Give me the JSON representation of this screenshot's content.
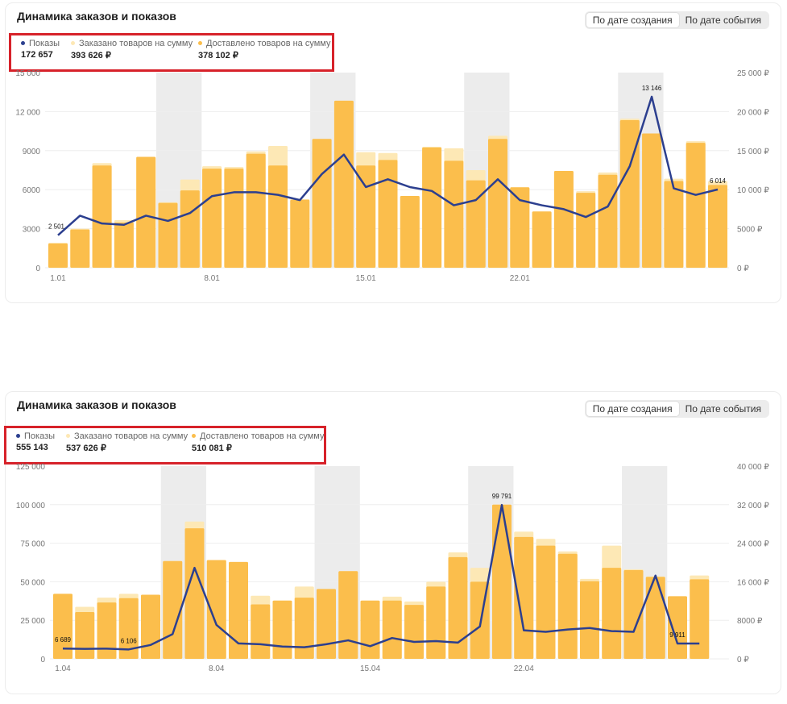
{
  "colors": {
    "bar_ordered": "#fde8b5",
    "bar_delivered": "#fbbe4c",
    "line": "#2c3f8f",
    "weekend": "#ececec",
    "grid": "#eeeeee",
    "highlight_border": "#d7222a"
  },
  "charts": [
    {
      "title": "Динамика заказов и показов",
      "toggle": {
        "option1": "По дате создания",
        "option2": "По дате события"
      },
      "legend": {
        "shows_label": "Показы",
        "shows_value": "172 657",
        "ordered_label": "Заказано товаров на сумму",
        "ordered_value": "393 626 ₽",
        "delivered_label": "Доставлено товаров на сумму",
        "delivered_value": "378 102 ₽"
      },
      "point_labels": [
        "2 501",
        "13 146",
        "6 014"
      ]
    },
    {
      "title": "Динамика заказов и показов",
      "toggle": {
        "option1": "По дате создания",
        "option2": "По дате события"
      },
      "legend": {
        "shows_label": "Показы",
        "shows_value": "555 143",
        "ordered_label": "Заказано товаров на сумму",
        "ordered_value": "537 626 ₽",
        "delivered_label": "Доставлено товаров на сумму",
        "delivered_value": "510 081 ₽"
      },
      "point_labels": [
        "6 689",
        "6 106",
        "99 791",
        "9 911"
      ]
    }
  ],
  "chart_data": [
    {
      "type": "bar",
      "title": "Динамика заказов и показов",
      "categories": [
        "1.01",
        "2.01",
        "3.01",
        "4.01",
        "5.01",
        "6.01",
        "7.01",
        "8.01",
        "9.01",
        "10.01",
        "11.01",
        "12.01",
        "13.01",
        "14.01",
        "15.01",
        "16.01",
        "17.01",
        "18.01",
        "19.01",
        "20.01",
        "21.01",
        "22.01",
        "23.01",
        "24.01",
        "25.01",
        "26.01",
        "27.01",
        "28.01",
        "29.01",
        "30.01",
        "31.01"
      ],
      "x_tick_labels": [
        "1.01",
        "8.01",
        "15.01",
        "22.01"
      ],
      "x_tick_indices": [
        0,
        7,
        14,
        21
      ],
      "weekend_indices": [
        5,
        6,
        12,
        13,
        19,
        20,
        26,
        27
      ],
      "left_axis": {
        "ylim": [
          0,
          15000
        ],
        "ticks": [
          0,
          3000,
          6000,
          9000,
          12000
        ],
        "tick_labels": [
          "0",
          "3000",
          "6000",
          "9000",
          "12 000"
        ],
        "top_label": "15 000"
      },
      "right_axis": {
        "ylim": [
          0,
          25000
        ],
        "ticks": [
          0,
          5000,
          10000,
          15000,
          20000,
          25000
        ],
        "tick_labels": [
          "0 ₽",
          "5000 ₽",
          "10 000 ₽",
          "15 000 ₽",
          "20 000 ₽",
          "25 000 ₽"
        ]
      },
      "series": [
        {
          "name": "Заказано товаров на сумму",
          "axis": "right",
          "type": "bar",
          "values": [
            3200,
            5000,
            13400,
            6100,
            14200,
            8400,
            11300,
            13000,
            12900,
            14900,
            15600,
            8800,
            16500,
            21400,
            14800,
            14700,
            9200,
            15500,
            15300,
            12500,
            16900,
            10300,
            7200,
            12400,
            9800,
            12200,
            19100,
            17200,
            11400,
            16200,
            11100
          ]
        },
        {
          "name": "Доставлено товаров на сумму",
          "axis": "right",
          "type": "bar",
          "values": [
            3100,
            4900,
            13100,
            5800,
            14200,
            8300,
            9900,
            12700,
            12700,
            14600,
            13100,
            8700,
            16500,
            21400,
            13100,
            13800,
            9200,
            15400,
            13700,
            11200,
            16500,
            10300,
            7200,
            12400,
            9600,
            11900,
            18900,
            17200,
            11100,
            16000,
            10600
          ]
        },
        {
          "name": "Показы",
          "axis": "left",
          "type": "line",
          "values": [
            2501,
            4000,
            3400,
            3300,
            4000,
            3600,
            4200,
            5500,
            5800,
            5800,
            5600,
            5200,
            7200,
            8700,
            6200,
            6800,
            6200,
            5900,
            4800,
            5200,
            6800,
            5200,
            4800,
            4500,
            3900,
            4700,
            7800,
            13146,
            6100,
            5600,
            6014
          ]
        }
      ]
    },
    {
      "type": "bar",
      "title": "Динамика заказов и показов",
      "categories": [
        "1.04",
        "2.04",
        "3.04",
        "4.04",
        "5.04",
        "6.04",
        "7.04",
        "8.04",
        "9.04",
        "10.04",
        "11.04",
        "12.04",
        "13.04",
        "14.04",
        "15.04",
        "16.04",
        "17.04",
        "18.04",
        "19.04",
        "20.04",
        "21.04",
        "22.04",
        "23.04",
        "24.04",
        "25.04",
        "26.04",
        "27.04",
        "28.04",
        "29.04",
        "30.04"
      ],
      "x_tick_labels": [
        "1.04",
        "8.04",
        "15.04",
        "22.04"
      ],
      "x_tick_indices": [
        0,
        7,
        14,
        21
      ],
      "weekend_indices": [
        5,
        6,
        12,
        13,
        19,
        20,
        26,
        27
      ],
      "left_axis": {
        "ylim": [
          0,
          125000
        ],
        "ticks": [
          0,
          25000,
          50000,
          75000,
          100000
        ],
        "tick_labels": [
          "0",
          "25 000",
          "50 000",
          "75 000",
          "100 000"
        ],
        "top_label": "125 000"
      },
      "right_axis": {
        "ylim": [
          0,
          40000
        ],
        "ticks": [
          0,
          8000,
          16000,
          24000,
          32000,
          40000
        ],
        "tick_labels": [
          "0 ₽",
          "8000 ₽",
          "16 000 ₽",
          "24 000 ₽",
          "32 000 ₽",
          "40 000 ₽"
        ]
      },
      "series": [
        {
          "name": "Заказано товаров на сумму",
          "axis": "right",
          "type": "bar",
          "values": [
            13500,
            10800,
            12700,
            13500,
            13300,
            20300,
            28500,
            20500,
            20100,
            13100,
            12100,
            15000,
            14500,
            18200,
            12100,
            12900,
            11900,
            16000,
            22100,
            18900,
            32000,
            26400,
            24900,
            22300,
            16600,
            23500,
            18600,
            17100,
            13000,
            17300
          ]
        },
        {
          "name": "Доставлено товаров на сумму",
          "axis": "right",
          "type": "bar",
          "values": [
            13500,
            9700,
            11700,
            12600,
            13300,
            20300,
            27100,
            20500,
            20100,
            11300,
            12100,
            12700,
            14500,
            18200,
            12100,
            12100,
            11200,
            15000,
            21100,
            16000,
            32000,
            25300,
            23500,
            21800,
            16100,
            18900,
            18400,
            17000,
            13000,
            16500
          ]
        },
        {
          "name": "Показы",
          "axis": "left",
          "type": "line",
          "values": [
            6689,
            6500,
            6600,
            6100,
            9000,
            16000,
            59000,
            22000,
            10000,
            9500,
            8000,
            7500,
            9500,
            12000,
            8200,
            13500,
            11000,
            11500,
            10500,
            21000,
            99791,
            18500,
            17500,
            19000,
            20000,
            18000,
            17500,
            54000,
            9911,
            9911
          ]
        }
      ]
    }
  ]
}
